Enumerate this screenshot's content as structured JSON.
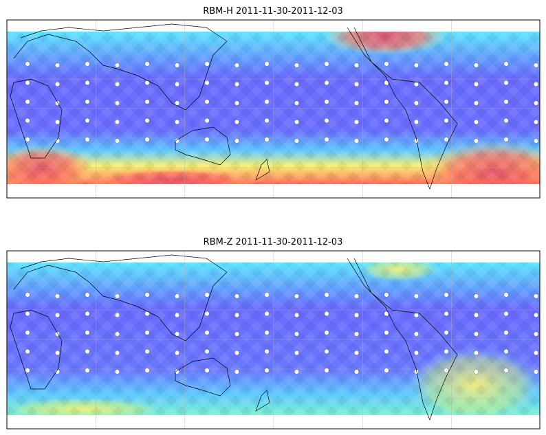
{
  "panels": [
    {
      "title": "RBM-H 2011-11-30-2011-12-03"
    },
    {
      "title": "RBM-Z 2011-11-30-2011-12-03"
    }
  ]
}
